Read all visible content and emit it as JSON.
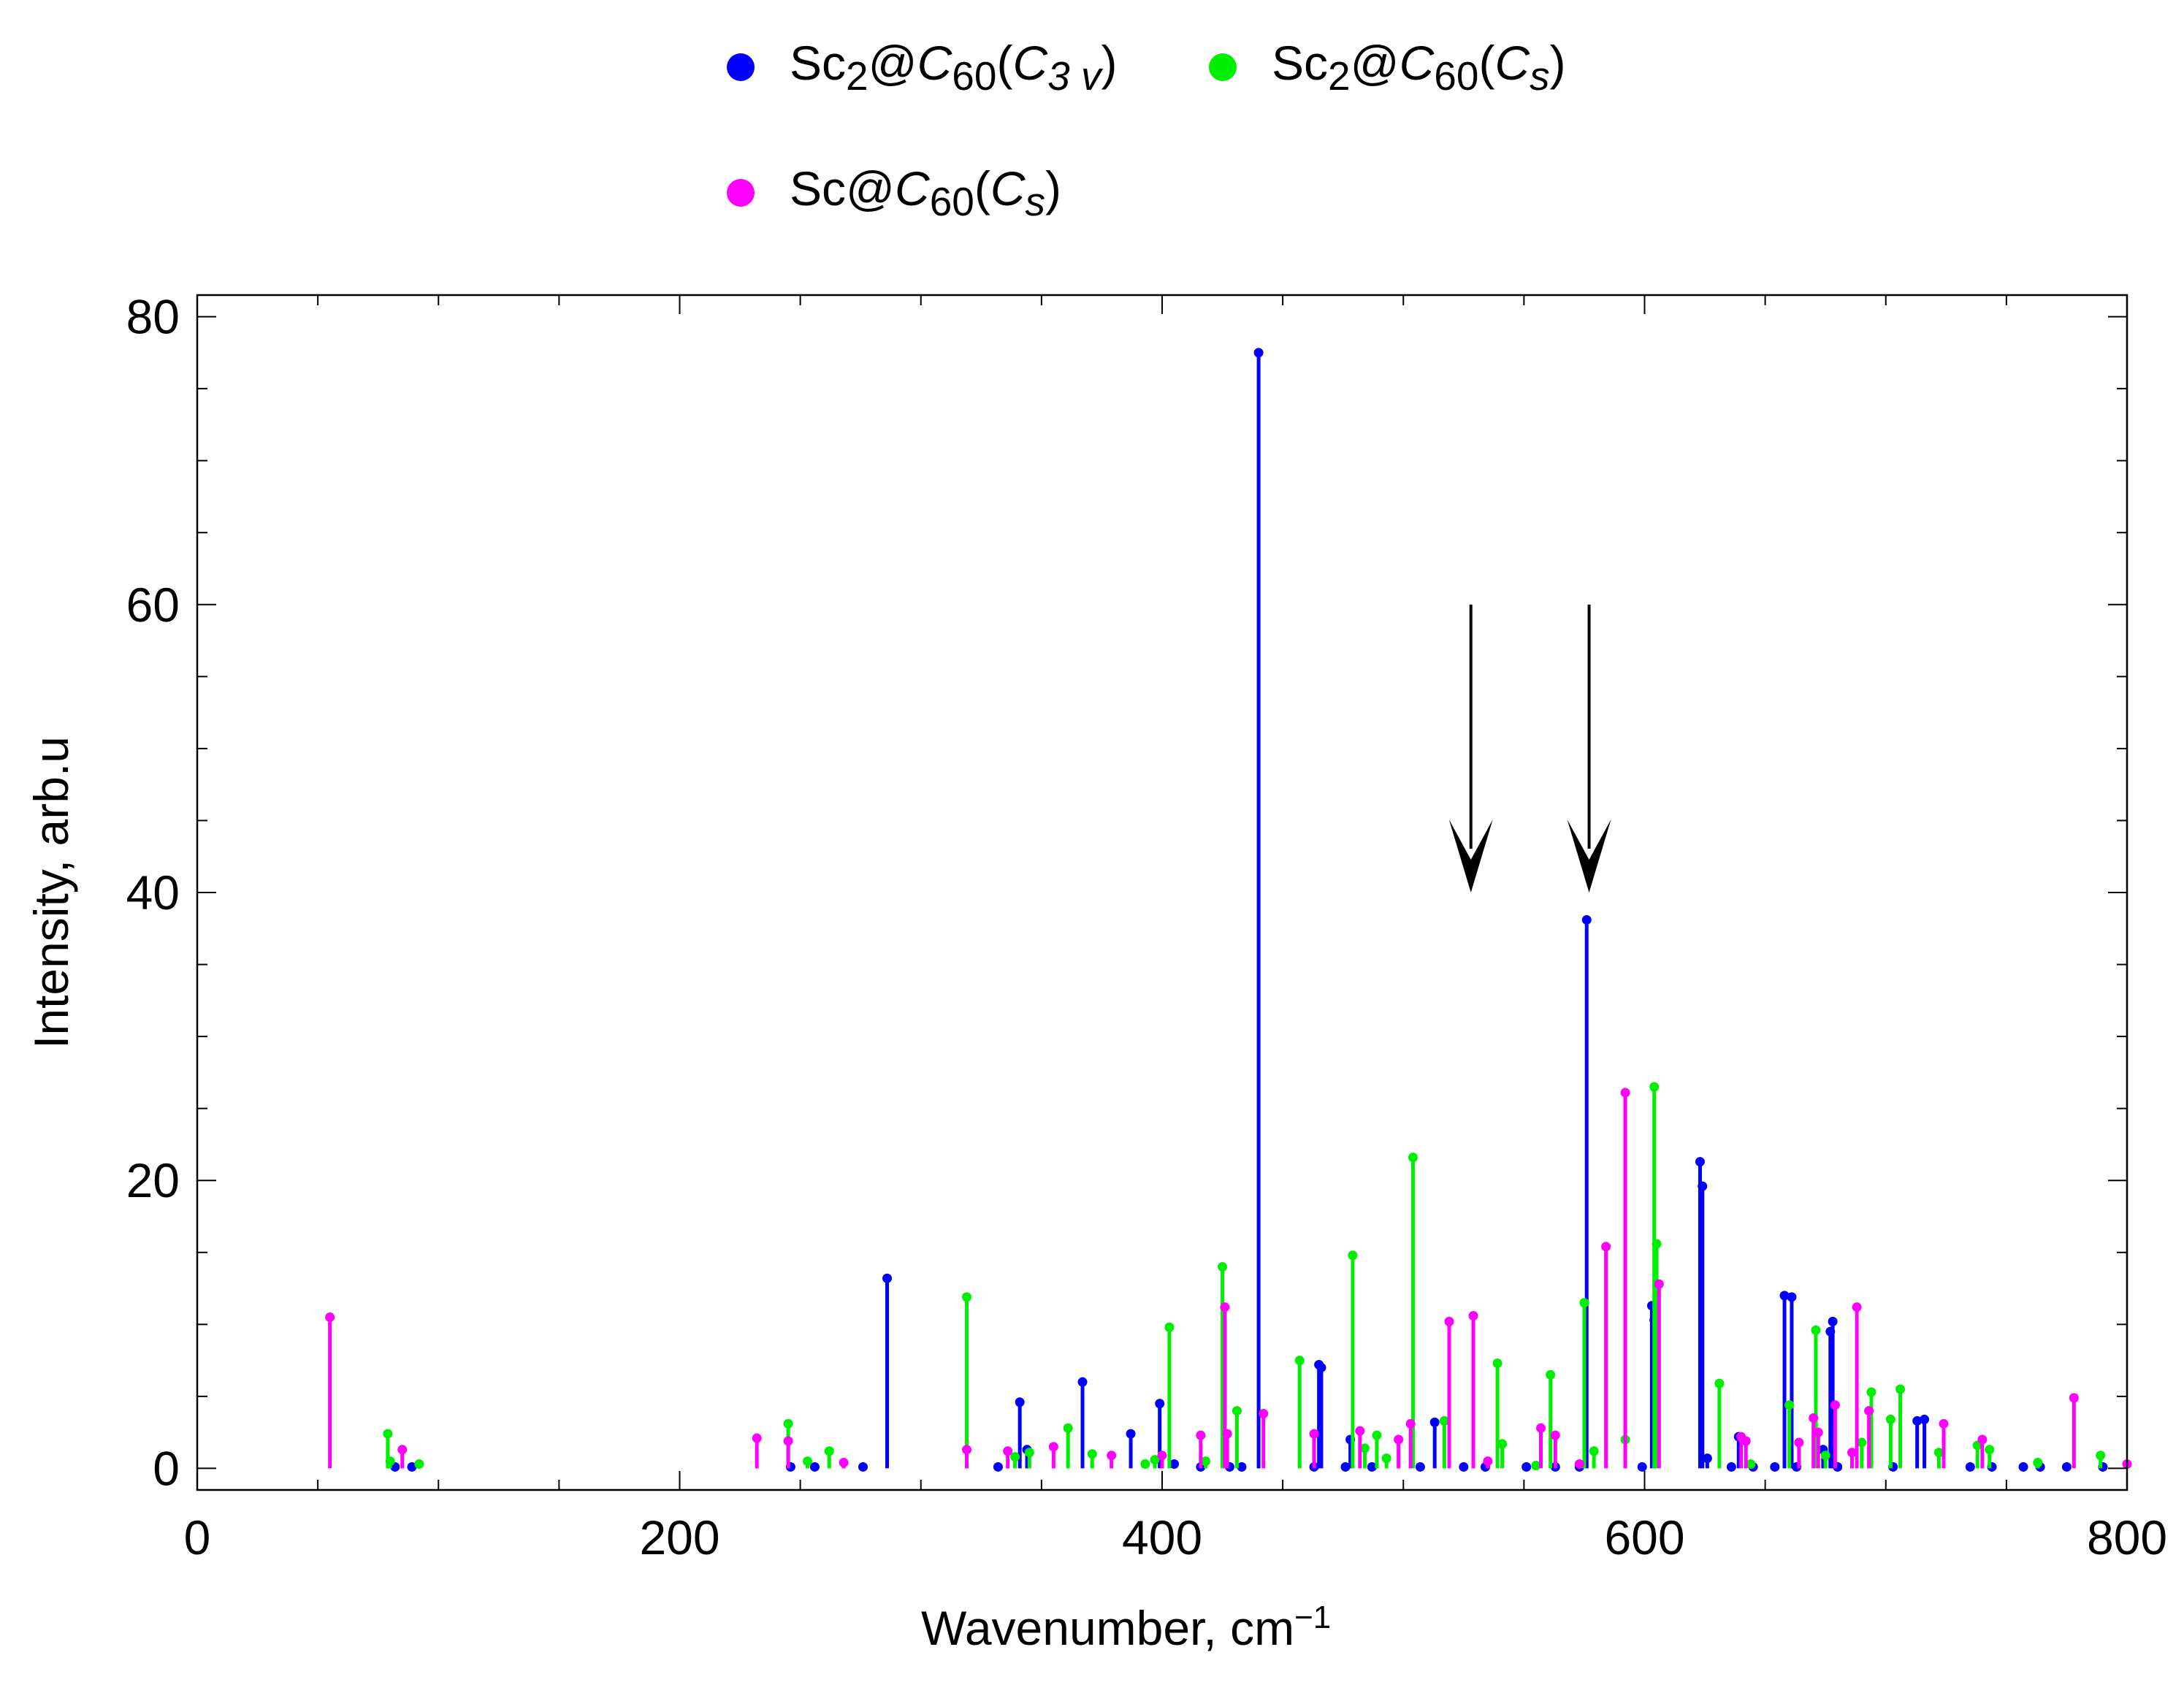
{
  "chart_data": {
    "type": "stem",
    "xlabel": "Wavenumber, cm",
    "xlabel_sup": "−1",
    "ylabel": "Intensity, arb.u",
    "xlim": [
      0,
      800
    ],
    "ylim": [
      -1.5,
      81.5
    ],
    "xticks": [
      0,
      200,
      400,
      600,
      800
    ],
    "yticks": [
      0,
      20,
      40,
      60,
      80
    ],
    "x_minor_step": 50,
    "y_minor_step": 5,
    "grid": false,
    "legend_position": "top",
    "series": [
      {
        "name": "Sc2@C60(C3v)",
        "color": "#0000ff",
        "points": [
          [
            82,
            0.1
          ],
          [
            89,
            0.1
          ],
          [
            246,
            0.1
          ],
          [
            256,
            0.1
          ],
          [
            276,
            0.1
          ],
          [
            286,
            13.2
          ],
          [
            332,
            0.1
          ],
          [
            341,
            4.6
          ],
          [
            344,
            1.3
          ],
          [
            367,
            6.0
          ],
          [
            387,
            2.4
          ],
          [
            399,
            4.5
          ],
          [
            405,
            0.3
          ],
          [
            416,
            0.1
          ],
          [
            428,
            0.1
          ],
          [
            433,
            0.1
          ],
          [
            440,
            77.5
          ],
          [
            463,
            0.1
          ],
          [
            465,
            7.2
          ],
          [
            466,
            7.0
          ],
          [
            476,
            0.1
          ],
          [
            478,
            2.0
          ],
          [
            487,
            0.1
          ],
          [
            507,
            0.1
          ],
          [
            513,
            3.2
          ],
          [
            525,
            0.1
          ],
          [
            534,
            0.1
          ],
          [
            551,
            0.1
          ],
          [
            563,
            0.1
          ],
          [
            573,
            0.1
          ],
          [
            576,
            38.1
          ],
          [
            599,
            0.1
          ],
          [
            603,
            11.3
          ],
          [
            604,
            10.3
          ],
          [
            623,
            21.3
          ],
          [
            624,
            19.6
          ],
          [
            626,
            0.7
          ],
          [
            636,
            0.1
          ],
          [
            639,
            2.2
          ],
          [
            645,
            0.1
          ],
          [
            654,
            0.1
          ],
          [
            658,
            12.0
          ],
          [
            661,
            11.9
          ],
          [
            663,
            0.1
          ],
          [
            674,
            1.3
          ],
          [
            677,
            9.5
          ],
          [
            678,
            10.2
          ],
          [
            680,
            0.1
          ],
          [
            703,
            0.1
          ],
          [
            713,
            3.3
          ],
          [
            716,
            3.4
          ],
          [
            735,
            0.1
          ],
          [
            744,
            0.1
          ],
          [
            757,
            0.1
          ],
          [
            764,
            0.1
          ],
          [
            775,
            0.1
          ],
          [
            790,
            0.1
          ]
        ]
      },
      {
        "name": "Sc2@C60(Cs)",
        "color": "#00ee00",
        "points": [
          [
            79,
            2.4
          ],
          [
            80,
            0.5
          ],
          [
            92,
            0.3
          ],
          [
            245,
            3.1
          ],
          [
            253,
            0.5
          ],
          [
            262,
            1.2
          ],
          [
            319,
            11.9
          ],
          [
            339,
            0.8
          ],
          [
            345,
            1.1
          ],
          [
            361,
            2.8
          ],
          [
            371,
            1.0
          ],
          [
            393,
            0.3
          ],
          [
            397,
            0.6
          ],
          [
            403,
            9.8
          ],
          [
            418,
            0.5
          ],
          [
            425,
            14.0
          ],
          [
            431,
            4.0
          ],
          [
            457,
            7.5
          ],
          [
            479,
            14.8
          ],
          [
            484,
            1.4
          ],
          [
            489,
            2.3
          ],
          [
            493,
            0.7
          ],
          [
            504,
            21.6
          ],
          [
            517,
            3.3
          ],
          [
            539,
            7.3
          ],
          [
            541,
            1.7
          ],
          [
            555,
            0.2
          ],
          [
            561,
            6.5
          ],
          [
            575,
            11.5
          ],
          [
            579,
            1.2
          ],
          [
            592,
            2.0
          ],
          [
            604,
            26.5
          ],
          [
            605,
            15.6
          ],
          [
            631,
            5.9
          ],
          [
            644,
            0.3
          ],
          [
            660,
            4.4
          ],
          [
            671,
            9.6
          ],
          [
            675,
            0.9
          ],
          [
            690,
            1.8
          ],
          [
            694,
            5.3
          ],
          [
            702,
            3.4
          ],
          [
            706,
            5.5
          ],
          [
            722,
            1.1
          ],
          [
            738,
            1.6
          ],
          [
            743,
            1.3
          ],
          [
            763,
            0.4
          ],
          [
            789,
            0.9
          ]
        ]
      },
      {
        "name": "Sc@C60(Cs)",
        "color": "#ff00ff",
        "points": [
          [
            55,
            10.5
          ],
          [
            85,
            1.3
          ],
          [
            232,
            2.1
          ],
          [
            245,
            1.9
          ],
          [
            268,
            0.4
          ],
          [
            319,
            1.3
          ],
          [
            336,
            1.2
          ],
          [
            355,
            1.5
          ],
          [
            379,
            0.9
          ],
          [
            400,
            0.9
          ],
          [
            416,
            2.3
          ],
          [
            426,
            11.2
          ],
          [
            427,
            2.4
          ],
          [
            442,
            3.8
          ],
          [
            463,
            2.4
          ],
          [
            482,
            2.6
          ],
          [
            498,
            2.0
          ],
          [
            503,
            3.1
          ],
          [
            519,
            10.2
          ],
          [
            529,
            10.6
          ],
          [
            535,
            0.5
          ],
          [
            557,
            2.8
          ],
          [
            563,
            2.3
          ],
          [
            573,
            0.3
          ],
          [
            584,
            15.4
          ],
          [
            592,
            26.1
          ],
          [
            606,
            12.8
          ],
          [
            640,
            2.2
          ],
          [
            642,
            1.9
          ],
          [
            664,
            1.8
          ],
          [
            670,
            3.5
          ],
          [
            672,
            2.5
          ],
          [
            679,
            4.4
          ],
          [
            686,
            1.1
          ],
          [
            688,
            11.2
          ],
          [
            693,
            4.0
          ],
          [
            724,
            3.1
          ],
          [
            740,
            2.0
          ],
          [
            778,
            4.9
          ],
          [
            800,
            0.3
          ]
        ]
      }
    ],
    "annotations": [
      {
        "type": "arrow",
        "x": 528,
        "y_from": 60,
        "y_to": 40
      },
      {
        "type": "arrow",
        "x": 577,
        "y_from": 60,
        "y_to": 40
      }
    ]
  },
  "legend": [
    {
      "pre": "Sc",
      "sub1": "2",
      "mid": "@",
      "italic": "C",
      "sub2": "60",
      "open": "(",
      "sym": "C",
      "symsub": "3 v",
      "close": ")",
      "color": "#0000ff"
    },
    {
      "pre": "Sc",
      "sub1": "2",
      "mid": "@",
      "italic": "C",
      "sub2": "60",
      "open": "(",
      "sym": "C",
      "symsub": "s",
      "close": ")",
      "color": "#00ee00"
    },
    {
      "pre": "Sc",
      "sub1": "",
      "mid": "@",
      "italic": "C",
      "sub2": "60",
      "open": "(",
      "sym": "C",
      "symsub": "s",
      "close": ")",
      "color": "#ff00ff"
    }
  ]
}
